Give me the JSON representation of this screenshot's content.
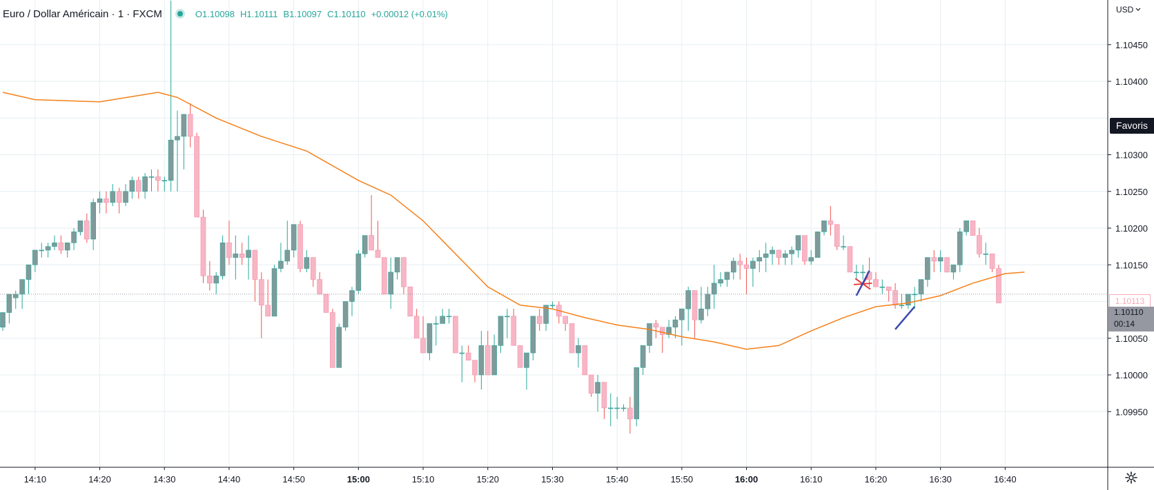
{
  "header": {
    "symbol_title": "Euro / Dollar Américain · 1 · FXCM",
    "open_key": "O",
    "open_value": "1.10098",
    "high_key": "H",
    "high_value": "1.10111",
    "low_key": "B",
    "low_value": "1.10097",
    "close_key": "C",
    "close_value": "1.10110",
    "change": "+0.00012 (+0.01%)"
  },
  "price_axis": {
    "currency": "USD",
    "tick_labels": [
      "1.10450",
      "1.10400",
      "1.10300",
      "1.10250",
      "1.10200",
      "1.10150",
      "1.10050",
      "1.10000",
      "1.09950"
    ],
    "favoris_label": "Favoris",
    "prev_price_label": "1.10113",
    "current_price_label": "1.10110",
    "countdown_label": "00:14"
  },
  "time_axis": {
    "tick_labels": [
      "14:10",
      "14:20",
      "14:30",
      "14:40",
      "14:50",
      "15:00",
      "15:10",
      "15:20",
      "15:30",
      "15:40",
      "15:50",
      "16:00",
      "16:10",
      "16:20",
      "16:30",
      "16:40"
    ],
    "bold_labels": [
      "15:00",
      "16:00"
    ]
  },
  "icons": {
    "currency_caret": "caret-down-icon",
    "settings": "gear-icon"
  },
  "colors": {
    "up": "#26a69a",
    "down": "#ef5350",
    "up_body": "#809a9a",
    "down_body": "#f7b6c4",
    "ma_line": "#f57f17",
    "grid": "#e6eef2"
  },
  "chart_data": {
    "type": "candlestick",
    "title": "Euro / Dollar Américain · 1 · FXCM",
    "y_range": [
      1.0992,
      1.1051
    ],
    "y_ticks": [
      1.0995,
      1.1,
      1.1005,
      1.101,
      1.1015,
      1.102,
      1.1025,
      1.103,
      1.104,
      1.1045
    ],
    "x_range": [
      "14:05",
      "16:43"
    ],
    "interval_minutes": 1,
    "grid": true,
    "moving_average_path": [
      [
        "14:05",
        1.10385
      ],
      [
        "14:10",
        1.10375
      ],
      [
        "14:20",
        1.10372
      ],
      [
        "14:29",
        1.10385
      ],
      [
        "14:32",
        1.10378
      ],
      [
        "14:38",
        1.1035
      ],
      [
        "14:45",
        1.10325
      ],
      [
        "14:52",
        1.10305
      ],
      [
        "15:00",
        1.10265
      ],
      [
        "15:05",
        1.10245
      ],
      [
        "15:10",
        1.1021
      ],
      [
        "15:15",
        1.10165
      ],
      [
        "15:20",
        1.1012
      ],
      [
        "15:25",
        1.10095
      ],
      [
        "15:30",
        1.1009
      ],
      [
        "15:35",
        1.10078
      ],
      [
        "15:40",
        1.10068
      ],
      [
        "15:45",
        1.10062
      ],
      [
        "15:50",
        1.10052
      ],
      [
        "15:55",
        1.10045
      ],
      [
        "16:00",
        1.10035
      ],
      [
        "16:05",
        1.1004
      ],
      [
        "16:10",
        1.1006
      ],
      [
        "16:15",
        1.10078
      ],
      [
        "16:20",
        1.10093
      ],
      [
        "16:25",
        1.10098
      ],
      [
        "16:30",
        1.10108
      ],
      [
        "16:35",
        1.10125
      ],
      [
        "16:40",
        1.10138
      ],
      [
        "16:43",
        1.1014
      ]
    ],
    "candles_ohlc": [
      [
        1.10065,
        1.10085,
        1.1006,
        1.10085
      ],
      [
        1.10085,
        1.1009,
        1.1007,
        1.1011
      ],
      [
        1.10105,
        1.10115,
        1.1009,
        1.1011
      ],
      [
        1.1011,
        1.1013,
        1.1009,
        1.1013
      ],
      [
        1.1013,
        1.1014,
        1.1011,
        1.1015
      ],
      [
        1.1015,
        1.1017,
        1.1014,
        1.1017
      ],
      [
        1.1017,
        1.1018,
        1.1016,
        1.1017
      ],
      [
        1.1017,
        1.1018,
        1.1016,
        1.10175
      ],
      [
        1.10175,
        1.1019,
        1.1017,
        1.1018
      ],
      [
        1.1018,
        1.1019,
        1.10165,
        1.1017
      ],
      [
        1.1017,
        1.1018,
        1.1016,
        1.1018
      ],
      [
        1.1018,
        1.102,
        1.1017,
        1.10195
      ],
      [
        1.10195,
        1.1021,
        1.1019,
        1.1021
      ],
      [
        1.1021,
        1.1022,
        1.1018,
        1.10185
      ],
      [
        1.10185,
        1.1024,
        1.1017,
        1.10235
      ],
      [
        1.10235,
        1.1025,
        1.1022,
        1.1024
      ],
      [
        1.1024,
        1.1025,
        1.1022,
        1.10235
      ],
      [
        1.10235,
        1.1026,
        1.1023,
        1.1025
      ],
      [
        1.1025,
        1.10255,
        1.1022,
        1.10235
      ],
      [
        1.10235,
        1.1026,
        1.1023,
        1.1025
      ],
      [
        1.1025,
        1.1027,
        1.1024,
        1.10265
      ],
      [
        1.10265,
        1.1027,
        1.1024,
        1.1025
      ],
      [
        1.1025,
        1.10275,
        1.1024,
        1.1027
      ],
      [
        1.1027,
        1.1028,
        1.1025,
        1.1027
      ],
      [
        1.1027,
        1.1028,
        1.1025,
        1.10265
      ],
      [
        1.10265,
        1.1027,
        1.1025,
        1.10265
      ],
      [
        1.10265,
        1.1051,
        1.1025,
        1.1032
      ],
      [
        1.1032,
        1.1036,
        1.1025,
        1.10325
      ],
      [
        1.10325,
        1.1033,
        1.1028,
        1.10355
      ],
      [
        1.10355,
        1.1037,
        1.1031,
        1.10325
      ],
      [
        1.10325,
        1.1033,
        1.10215,
        1.10215
      ],
      [
        1.10215,
        1.10225,
        1.10125,
        1.10135
      ],
      [
        1.10135,
        1.10155,
        1.10115,
        1.10125
      ],
      [
        1.10125,
        1.1014,
        1.1011,
        1.10135
      ],
      [
        1.10135,
        1.1019,
        1.1013,
        1.1018
      ],
      [
        1.1018,
        1.1021,
        1.1015,
        1.1016
      ],
      [
        1.1016,
        1.1019,
        1.1013,
        1.10165
      ],
      [
        1.10165,
        1.1018,
        1.1015,
        1.1016
      ],
      [
        1.1016,
        1.1019,
        1.1013,
        1.1017
      ],
      [
        1.1017,
        1.1017,
        1.101,
        1.1013
      ],
      [
        1.1013,
        1.1014,
        1.1005,
        1.10095
      ],
      [
        1.10095,
        1.1013,
        1.1009,
        1.1008
      ],
      [
        1.1008,
        1.1015,
        1.1008,
        1.10145
      ],
      [
        1.10145,
        1.1018,
        1.1014,
        1.10155
      ],
      [
        1.10155,
        1.1021,
        1.1015,
        1.1017
      ],
      [
        1.1017,
        1.10205,
        1.1016,
        1.10205
      ],
      [
        1.10205,
        1.1021,
        1.1014,
        1.10145
      ],
      [
        1.10145,
        1.1017,
        1.1014,
        1.1016
      ],
      [
        1.1016,
        1.1016,
        1.1012,
        1.1013
      ],
      [
        1.1013,
        1.1014,
        1.1011,
        1.1011
      ],
      [
        1.1011,
        1.1011,
        1.10085,
        1.10085
      ],
      [
        1.10085,
        1.1009,
        1.1001,
        1.1001
      ],
      [
        1.1001,
        1.1007,
        1.1001,
        1.10065
      ],
      [
        1.10065,
        1.101,
        1.1006,
        1.101
      ],
      [
        1.101,
        1.1012,
        1.1008,
        1.10115
      ],
      [
        1.10115,
        1.1017,
        1.1011,
        1.10165
      ],
      [
        1.10165,
        1.10185,
        1.1016,
        1.1019
      ],
      [
        1.1019,
        1.10245,
        1.1017,
        1.1017
      ],
      [
        1.1017,
        1.1021,
        1.1016,
        1.1016
      ],
      [
        1.1016,
        1.1016,
        1.1011,
        1.1011
      ],
      [
        1.1011,
        1.1016,
        1.1009,
        1.1014
      ],
      [
        1.1014,
        1.1016,
        1.1013,
        1.1016
      ],
      [
        1.1016,
        1.1016,
        1.1011,
        1.1012
      ],
      [
        1.1012,
        1.1012,
        1.1008,
        1.1008
      ],
      [
        1.1008,
        1.1009,
        1.1005,
        1.1005
      ],
      [
        1.1005,
        1.1008,
        1.1004,
        1.1003
      ],
      [
        1.1003,
        1.1006,
        1.1002,
        1.1007
      ],
      [
        1.1007,
        1.1008,
        1.1004,
        1.1007
      ],
      [
        1.1007,
        1.1009,
        1.1007,
        1.1008
      ],
      [
        1.1008,
        1.1009,
        1.1007,
        1.1008
      ],
      [
        1.1008,
        1.1008,
        1.1003,
        1.1003
      ],
      [
        1.1003,
        1.1004,
        1.0999,
        1.1003
      ],
      [
        1.1003,
        1.1004,
        1.1002,
        1.1002
      ],
      [
        1.1002,
        1.1002,
        1.0999,
        1.1
      ],
      [
        1.1,
        1.1006,
        1.0998,
        1.1004
      ],
      [
        1.1004,
        1.1006,
        1.1,
        1.1
      ],
      [
        1.1,
        1.10055,
        1.1,
        1.1004
      ],
      [
        1.1004,
        1.1008,
        1.1003,
        1.1008
      ],
      [
        1.1008,
        1.1009,
        1.1005,
        1.1008
      ],
      [
        1.1008,
        1.1009,
        1.1005,
        1.1004
      ],
      [
        1.1004,
        1.1004,
        1.1001,
        1.1001
      ],
      [
        1.1001,
        1.1003,
        1.0998,
        1.1003
      ],
      [
        1.1003,
        1.1008,
        1.1002,
        1.1008
      ],
      [
        1.1008,
        1.1009,
        1.1006,
        1.1007
      ],
      [
        1.1007,
        1.1009,
        1.1006,
        1.10095
      ],
      [
        1.10095,
        1.101,
        1.1009,
        1.10095
      ],
      [
        1.10095,
        1.101,
        1.1007,
        1.1008
      ],
      [
        1.1008,
        1.1008,
        1.1006,
        1.1007
      ],
      [
        1.1007,
        1.1007,
        1.1003,
        1.1003
      ],
      [
        1.1003,
        1.1005,
        1.1001,
        1.1004
      ],
      [
        1.1004,
        1.1004,
        1.1,
        1.1
      ],
      [
        1.1,
        1.1,
        1.0997,
        1.09975
      ],
      [
        1.09975,
        1.1,
        1.0995,
        1.0999
      ],
      [
        1.0999,
        1.0999,
        1.0994,
        1.09955
      ],
      [
        1.09955,
        1.09975,
        1.0993,
        1.09955
      ],
      [
        1.09955,
        1.0997,
        1.0994,
        1.09955
      ],
      [
        1.09955,
        1.0996,
        1.0995,
        1.09955
      ],
      [
        1.09955,
        1.0997,
        1.0992,
        1.0994
      ],
      [
        1.0994,
        1.1001,
        1.0993,
        1.1001
      ],
      [
        1.1001,
        1.1004,
        1.1,
        1.1004
      ],
      [
        1.1004,
        1.1007,
        1.1003,
        1.1007
      ],
      [
        1.1007,
        1.10075,
        1.1005,
        1.10065
      ],
      [
        1.10065,
        1.10065,
        1.1003,
        1.10055
      ],
      [
        1.10055,
        1.10075,
        1.1005,
        1.10065
      ],
      [
        1.10065,
        1.1008,
        1.1005,
        1.10075
      ],
      [
        1.10075,
        1.1009,
        1.1004,
        1.1009
      ],
      [
        1.1009,
        1.1012,
        1.1006,
        1.10115
      ],
      [
        1.10115,
        1.10115,
        1.1005,
        1.10075
      ],
      [
        1.10075,
        1.1012,
        1.1007,
        1.1009
      ],
      [
        1.1009,
        1.1012,
        1.1008,
        1.1011
      ],
      [
        1.1011,
        1.1015,
        1.1009,
        1.10125
      ],
      [
        1.10125,
        1.1014,
        1.1012,
        1.1013
      ],
      [
        1.1013,
        1.1014,
        1.1012,
        1.1014
      ],
      [
        1.1014,
        1.1016,
        1.1013,
        1.10155
      ],
      [
        1.10155,
        1.10165,
        1.1013,
        1.1015
      ],
      [
        1.1015,
        1.1016,
        1.1011,
        1.10145
      ],
      [
        1.10145,
        1.1016,
        1.1012,
        1.10155
      ],
      [
        1.10155,
        1.1017,
        1.1014,
        1.1016
      ],
      [
        1.1016,
        1.1018,
        1.1014,
        1.10165
      ],
      [
        1.10165,
        1.10175,
        1.1015,
        1.1017
      ],
      [
        1.1017,
        1.1017,
        1.1015,
        1.1016
      ],
      [
        1.1016,
        1.1017,
        1.1015,
        1.10165
      ],
      [
        1.10165,
        1.10175,
        1.1015,
        1.1017
      ],
      [
        1.1017,
        1.1019,
        1.1016,
        1.1019
      ],
      [
        1.1019,
        1.1019,
        1.1015,
        1.10155
      ],
      [
        1.10155,
        1.1017,
        1.1015,
        1.1016
      ],
      [
        1.1016,
        1.10195,
        1.1016,
        1.10195
      ],
      [
        1.10195,
        1.1021,
        1.1019,
        1.1021
      ],
      [
        1.1021,
        1.1023,
        1.1019,
        1.10205
      ],
      [
        1.10205,
        1.10205,
        1.1017,
        1.10175
      ],
      [
        1.10175,
        1.1019,
        1.1017,
        1.10175
      ],
      [
        1.10175,
        1.10175,
        1.1014,
        1.1014
      ],
      [
        1.1014,
        1.1015,
        1.1013,
        1.1014
      ],
      [
        1.1014,
        1.1015,
        1.1013,
        1.1014
      ],
      [
        1.1014,
        1.1016,
        1.1012,
        1.1013
      ],
      [
        1.1013,
        1.1014,
        1.1012,
        1.1012
      ],
      [
        1.1012,
        1.1013,
        1.1011,
        1.1012
      ],
      [
        1.1012,
        1.1012,
        1.101,
        1.10115
      ],
      [
        1.10115,
        1.10125,
        1.1009,
        1.10095
      ],
      [
        1.10095,
        1.1011,
        1.1009,
        1.10095
      ],
      [
        1.10095,
        1.1011,
        1.1009,
        1.1011
      ],
      [
        1.1011,
        1.1012,
        1.1009,
        1.1011
      ],
      [
        1.1011,
        1.1013,
        1.101,
        1.1013
      ],
      [
        1.1013,
        1.1016,
        1.1012,
        1.1016
      ],
      [
        1.1016,
        1.1017,
        1.1014,
        1.10155
      ],
      [
        1.10155,
        1.1017,
        1.1014,
        1.1016
      ],
      [
        1.1016,
        1.1016,
        1.1014,
        1.1014
      ],
      [
        1.1014,
        1.1015,
        1.1013,
        1.1015
      ],
      [
        1.1015,
        1.102,
        1.1014,
        1.10195
      ],
      [
        1.10195,
        1.1021,
        1.1019,
        1.1021
      ],
      [
        1.1021,
        1.1021,
        1.1019,
        1.1019
      ],
      [
        1.1019,
        1.102,
        1.1016,
        1.10165
      ],
      [
        1.10165,
        1.1018,
        1.1015,
        1.10165
      ],
      [
        1.10165,
        1.10165,
        1.1014,
        1.10145
      ],
      [
        1.10145,
        1.1015,
        1.1011,
        1.10098
      ]
    ],
    "annotations": [
      {
        "type": "cross",
        "color": "#e53935",
        "time": "16:18",
        "price": 1.10124
      },
      {
        "type": "trend_line",
        "color": "#3949ab",
        "from": [
          "16:17",
          1.10108
        ],
        "to": [
          "16:19",
          1.10142
        ]
      },
      {
        "type": "trend_line",
        "color": "#3949ab",
        "from": [
          "16:23",
          1.10062
        ],
        "to": [
          "16:26",
          1.10093
        ]
      }
    ]
  }
}
